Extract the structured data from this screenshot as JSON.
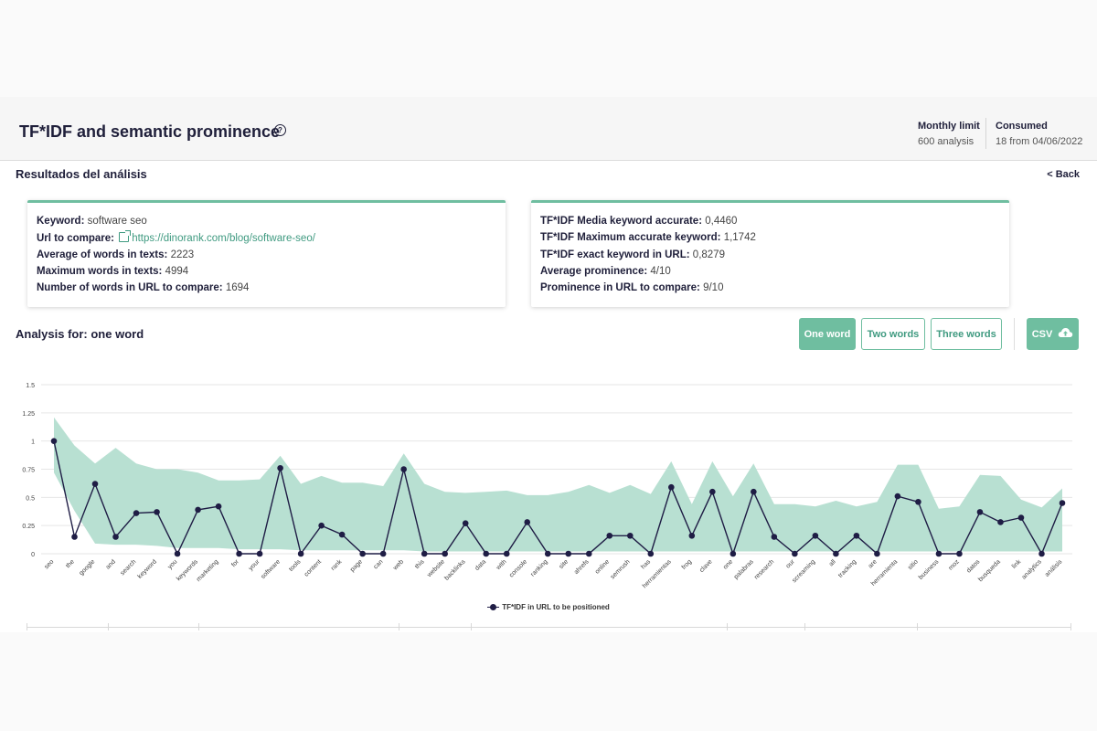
{
  "header": {
    "title": "TF*IDF and semantic prominence",
    "help_icon": "?",
    "monthly_limit_label": "Monthly limit",
    "monthly_limit_value": "600 analysis",
    "consumed_label": "Consumed",
    "consumed_value": "18 from 04/06/2022"
  },
  "results": {
    "title": "Resultados del análisis",
    "back_label": "< Back"
  },
  "card_left": {
    "keyword_label": "Keyword:",
    "keyword_value": "software seo",
    "url_label": "Url to compare:",
    "url_value": "https://dinorank.com/blog/software-seo/",
    "avg_words_label": "Average of words in texts:",
    "avg_words_value": "2223",
    "max_words_label": "Maximum words in texts:",
    "max_words_value": "4994",
    "url_words_label": "Number of words in URL to compare:",
    "url_words_value": "1694"
  },
  "card_right": {
    "media_label": "TF*IDF Media keyword accurate:",
    "media_value": "0,4460",
    "max_label": "TF*IDF Maximum accurate keyword:",
    "max_value": "1,1742",
    "exact_label": "TF*IDF exact keyword in URL:",
    "exact_value": "0,8279",
    "prom_label": "Average prominence:",
    "prom_value": "4/10",
    "prom_url_label": "Prominence in URL to compare:",
    "prom_url_value": "9/10"
  },
  "analysis": {
    "title": "Analysis for: one word",
    "buttons": {
      "one": "One word",
      "two": "Two words",
      "three": "Three words",
      "csv": "CSV"
    }
  },
  "colors": {
    "accent": "#6fbea0",
    "band": "#b8e0d2",
    "line": "#1f1d45"
  },
  "chart_data": {
    "type": "line",
    "y_ticks": [
      "1.5",
      "1.25",
      "1",
      "0.75",
      "0.5",
      "0.25",
      "0"
    ],
    "ylim": [
      0,
      1.5
    ],
    "grid": true,
    "legend_position": "bottom",
    "categories": [
      "seo",
      "the",
      "google",
      "and",
      "search",
      "keyword",
      "you",
      "keywords",
      "marketing",
      "for",
      "your",
      "software",
      "tools",
      "content",
      "rank",
      "page",
      "can",
      "web",
      "this",
      "website",
      "backlinks",
      "data",
      "with",
      "console",
      "ranking",
      "site",
      "ahrefs",
      "online",
      "semrush",
      "has",
      "herramientas",
      "frog",
      "clave",
      "one",
      "palabras",
      "research",
      "our",
      "screaming",
      "all",
      "tracking",
      "are",
      "herramienta",
      "sitio",
      "business",
      "moz",
      "datos",
      "busqueda",
      "link",
      "analytics",
      "análisis"
    ],
    "series": [
      {
        "name": "TF*IDF in URL to be positioned",
        "values": [
          1.0,
          0.15,
          0.62,
          0.15,
          0.36,
          0.37,
          0.0,
          0.39,
          0.42,
          0.0,
          0.0,
          0.76,
          0.0,
          0.25,
          0.17,
          0.0,
          0.0,
          0.75,
          0.0,
          0.0,
          0.27,
          0.0,
          0.0,
          0.28,
          0.0,
          0.0,
          0.0,
          0.16,
          0.16,
          0.0,
          0.59,
          0.16,
          0.55,
          0.0,
          0.55,
          0.15,
          0.0,
          0.16,
          0.0,
          0.16,
          0.0,
          0.51,
          0.46,
          0.0,
          0.0,
          0.37,
          0.28,
          0.32,
          0.0,
          0.45
        ]
      }
    ],
    "band": {
      "upper": [
        1.21,
        0.96,
        0.8,
        0.94,
        0.8,
        0.75,
        0.75,
        0.72,
        0.65,
        0.65,
        0.66,
        0.87,
        0.62,
        0.69,
        0.63,
        0.63,
        0.6,
        0.89,
        0.62,
        0.55,
        0.54,
        0.55,
        0.56,
        0.52,
        0.52,
        0.55,
        0.61,
        0.54,
        0.61,
        0.53,
        0.82,
        0.44,
        0.82,
        0.51,
        0.8,
        0.44,
        0.44,
        0.42,
        0.47,
        0.42,
        0.46,
        0.79,
        0.79,
        0.4,
        0.42,
        0.7,
        0.69,
        0.48,
        0.41,
        0.58
      ],
      "lower": [
        0.72,
        0.38,
        0.09,
        0.08,
        0.08,
        0.07,
        0.05,
        0.05,
        0.05,
        0.04,
        0.04,
        0.04,
        0.03,
        0.03,
        0.03,
        0.03,
        0.03,
        0.03,
        0.02,
        0.02,
        0.02,
        0.02,
        0.02,
        0.02,
        0.02,
        0.02,
        0.02,
        0.02,
        0.02,
        0.02,
        0.02,
        0.02,
        0.02,
        0.02,
        0.02,
        0.02,
        0.02,
        0.02,
        0.02,
        0.02,
        0.02,
        0.02,
        0.02,
        0.02,
        0.02,
        0.02,
        0.02,
        0.02,
        0.02,
        0.02
      ]
    }
  }
}
